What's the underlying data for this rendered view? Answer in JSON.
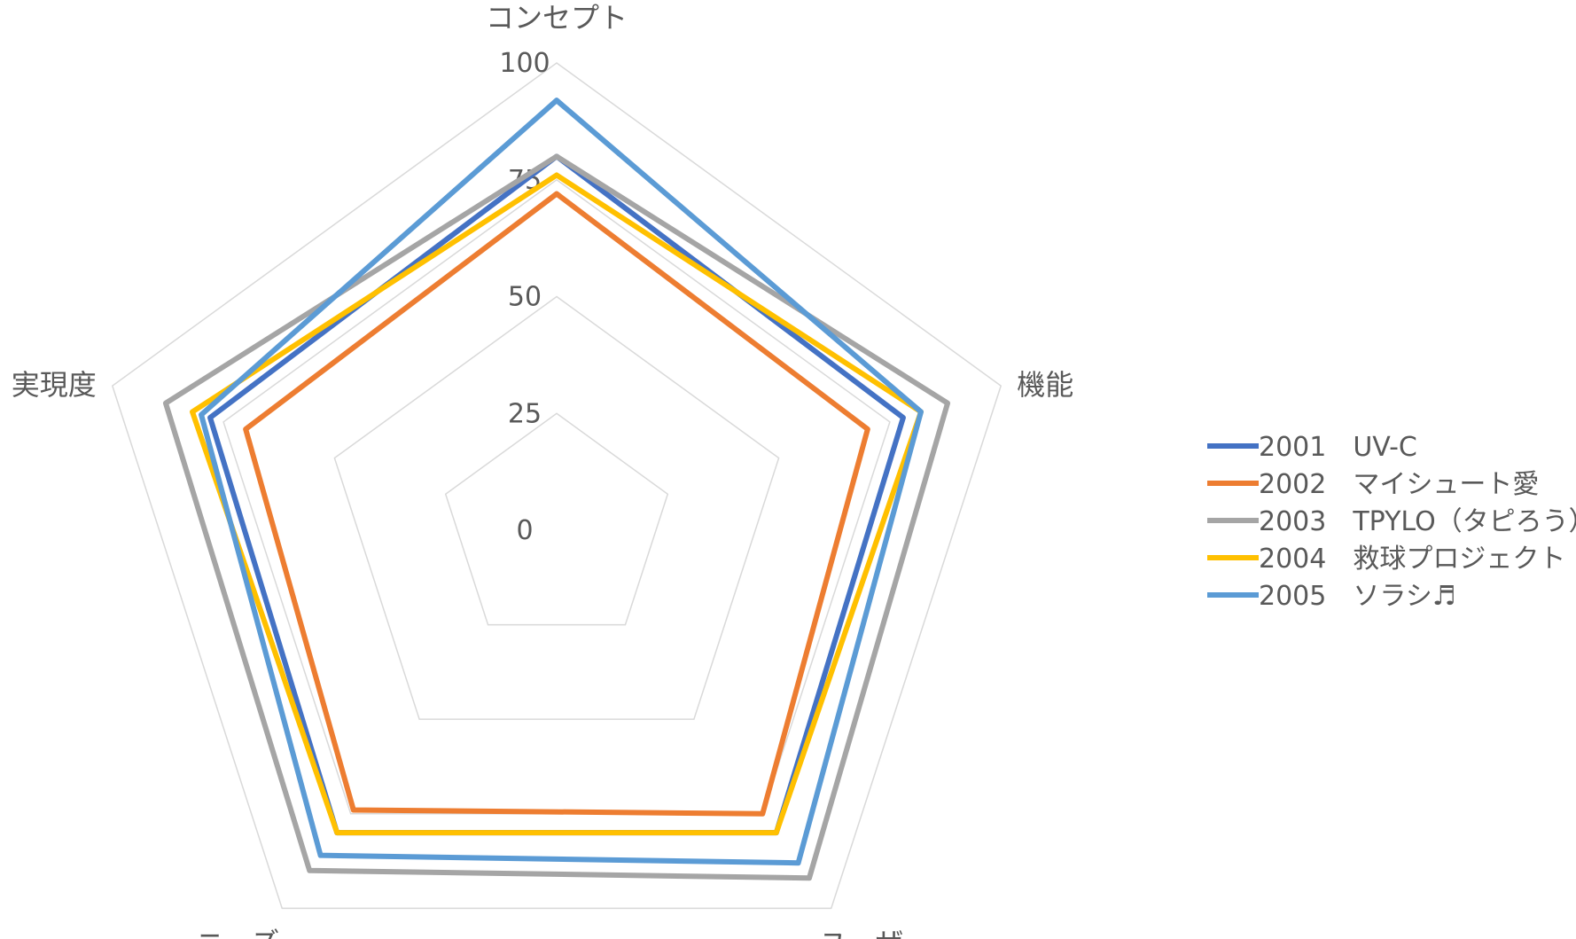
{
  "chart_data": {
    "type": "radar",
    "title": "",
    "axes": [
      "コンセプト",
      "機能",
      "ユーザー",
      "ニーズ",
      "実現度"
    ],
    "ticks": [
      "0",
      "25",
      "50",
      "75",
      "100"
    ],
    "rlim": [
      0,
      100
    ],
    "grid": true,
    "legend_position": "right",
    "series": [
      {
        "name": "2001　UV-C",
        "color": "#4472C4",
        "values": [
          80,
          78,
          80,
          80,
          78
        ]
      },
      {
        "name": "2002　マイシュート愛",
        "color": "#ED7D31",
        "values": [
          72,
          70,
          75,
          74,
          70
        ]
      },
      {
        "name": "2003　TPYLO（タピろう）",
        "color": "#A5A5A5",
        "values": [
          80,
          88,
          92,
          90,
          88
        ]
      },
      {
        "name": "2004　救球プロジェクト",
        "color": "#FFC000",
        "values": [
          76,
          82,
          80,
          80,
          82
        ]
      },
      {
        "name": "2005　ソラシ♬",
        "color": "#5B9BD5",
        "values": [
          92,
          82,
          88,
          86,
          80
        ]
      }
    ]
  }
}
